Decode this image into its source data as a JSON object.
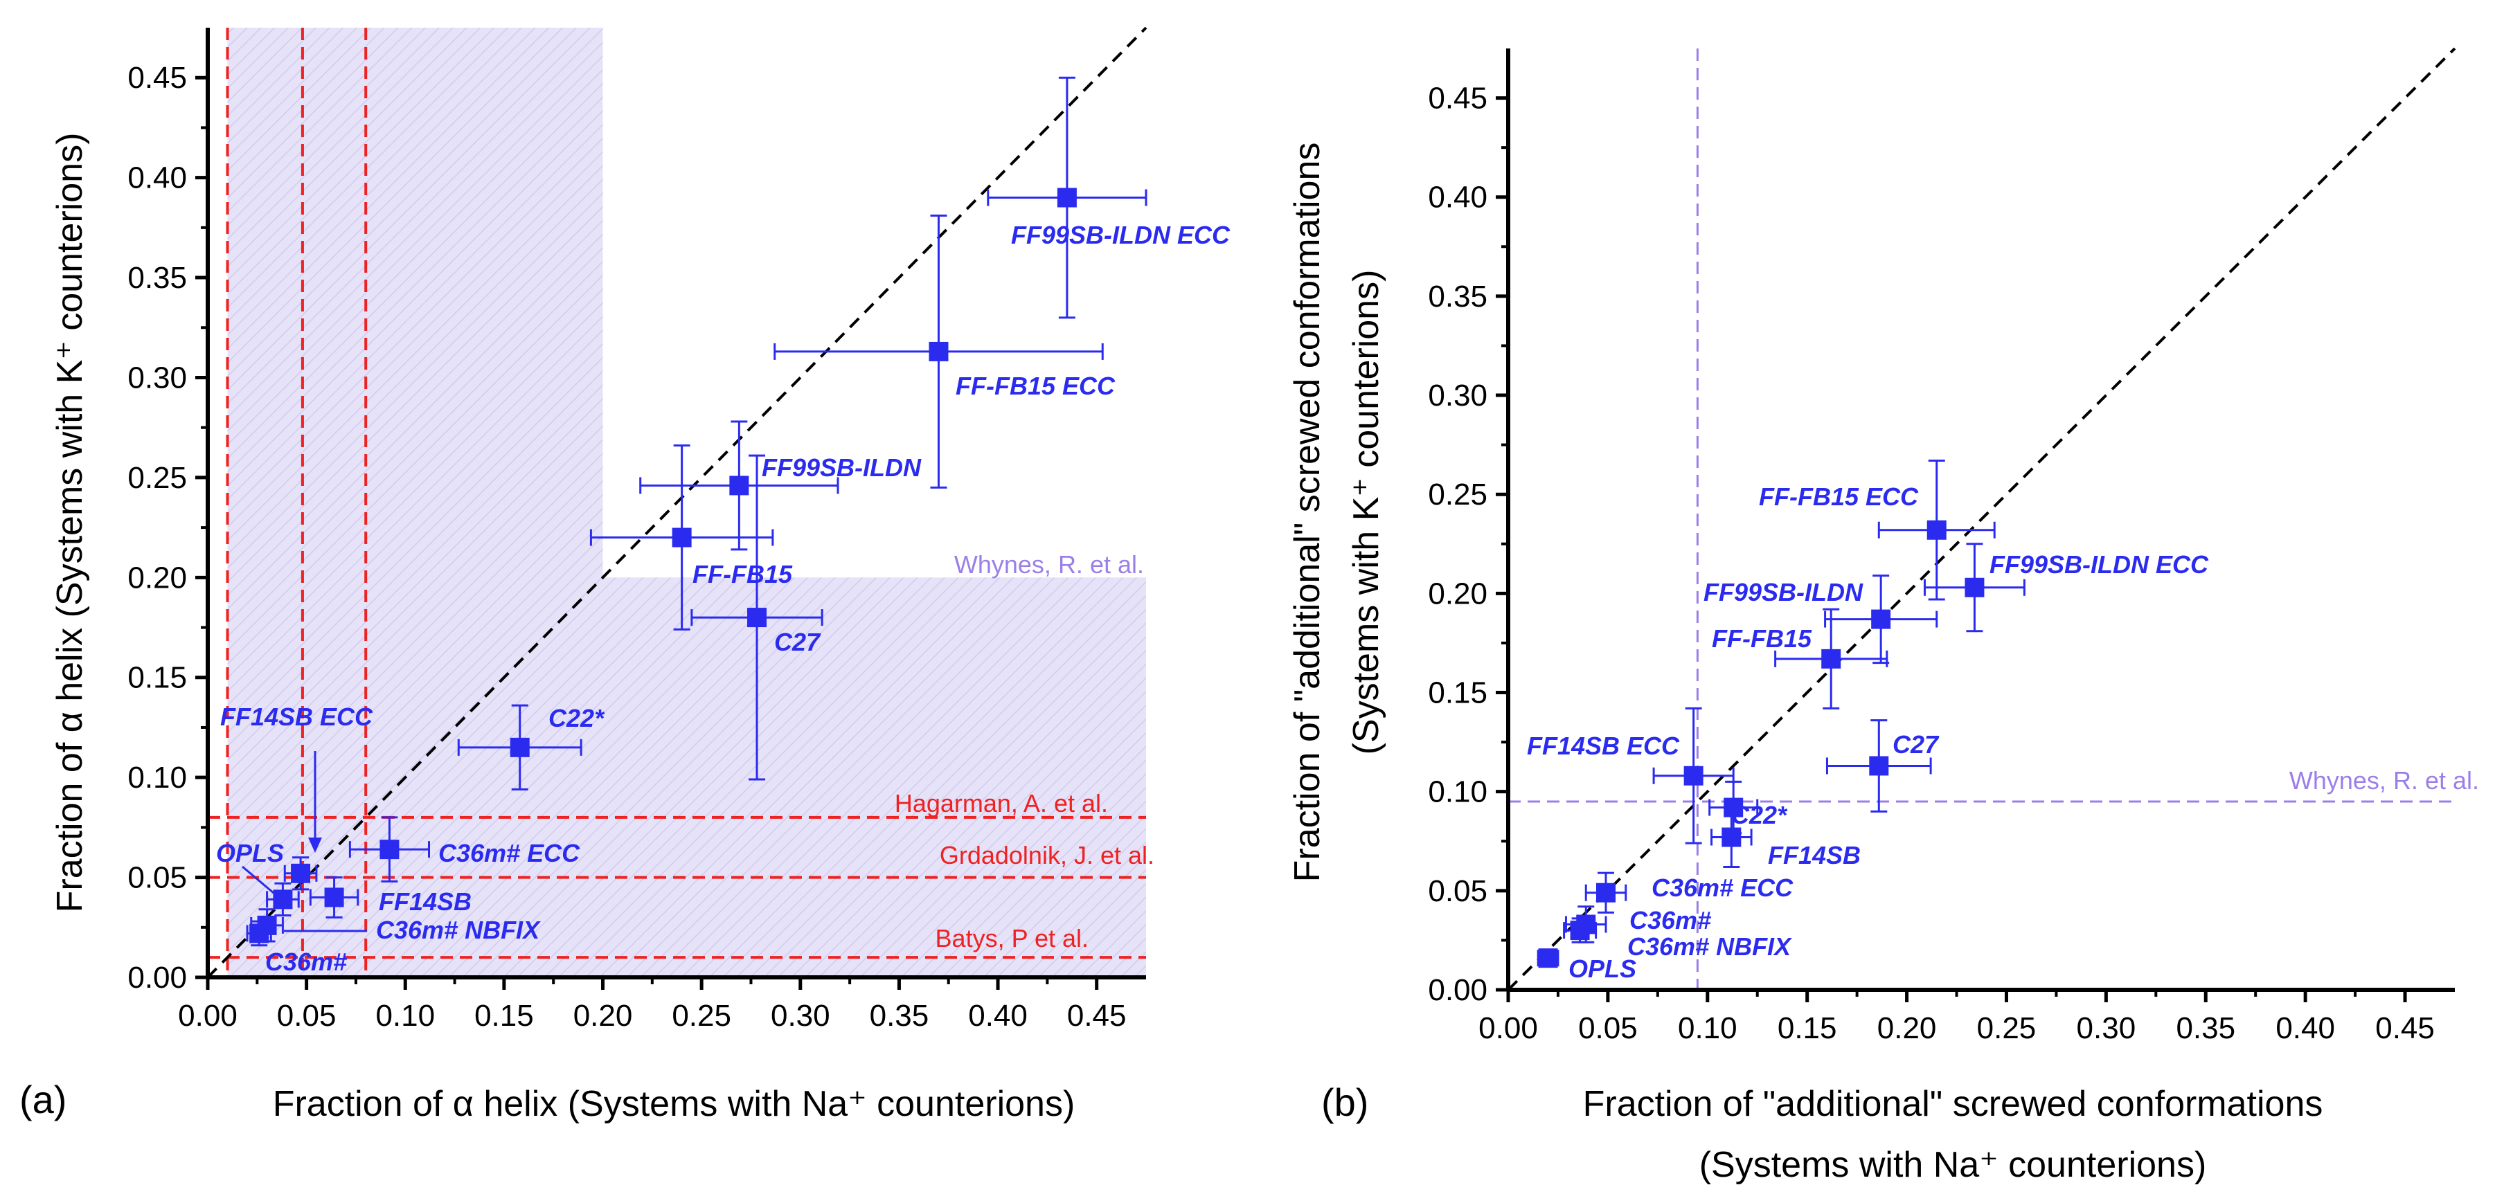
{
  "colors": {
    "series": "#2b2bf0",
    "exp_red": "#ee2222",
    "exp_purple": "#9b7fe8",
    "region_fill": "#e6e2f7",
    "axis": "#000000"
  },
  "chart_data": [
    {
      "type": "scatter",
      "panel_label": "(a)",
      "xlabel": "Fraction of α helix (Systems with Na⁺ counterions)",
      "ylabel": "Fraction of α helix (Systems with K⁺ counterions)",
      "xlim": [
        0,
        0.475
      ],
      "ylim": [
        0,
        0.475
      ],
      "ticks": [
        "0.00",
        "0.05",
        "0.10",
        "0.15",
        "0.20",
        "0.25",
        "0.30",
        "0.35",
        "0.40",
        "0.45"
      ],
      "diagonal": true,
      "shaded_regions": [
        {
          "x": [
            0.01,
            0.2
          ],
          "y": [
            0,
            0.475
          ]
        },
        {
          "x": [
            0.2,
            0.475
          ],
          "y": [
            0,
            0.2
          ]
        }
      ],
      "ref_lines": [
        {
          "label": "Hagarman, A. et al.",
          "axis": "y",
          "value": 0.08,
          "color": "red"
        },
        {
          "label": "Grdadolnik, J. et al.",
          "axis": "y",
          "value": 0.05,
          "color": "red"
        },
        {
          "label": "Batys, P et al.",
          "axis": "y",
          "value": 0.01,
          "color": "red"
        },
        {
          "label": "",
          "axis": "x",
          "value": 0.01,
          "color": "red"
        },
        {
          "label": "",
          "axis": "x",
          "value": 0.048,
          "color": "red"
        },
        {
          "label": "",
          "axis": "x",
          "value": 0.08,
          "color": "red"
        }
      ],
      "region_label": "Whynes, R. et al.",
      "points": [
        {
          "label": "FF99SB-ILDN ECC",
          "x": 0.435,
          "y": 0.39,
          "xerr": 0.04,
          "yerr": 0.06
        },
        {
          "label": "FF-FB15 ECC",
          "x": 0.37,
          "y": 0.313,
          "xerr": 0.083,
          "yerr": 0.068
        },
        {
          "label": "FF99SB-ILDN",
          "x": 0.269,
          "y": 0.246,
          "xerr": 0.05,
          "yerr": 0.032
        },
        {
          "label": "FF-FB15",
          "x": 0.24,
          "y": 0.22,
          "xerr": 0.046,
          "yerr": 0.046
        },
        {
          "label": "C27",
          "x": 0.278,
          "y": 0.18,
          "xerr": 0.033,
          "yerr": 0.081
        },
        {
          "label": "C22*",
          "x": 0.158,
          "y": 0.115,
          "xerr": 0.031,
          "yerr": 0.021
        },
        {
          "label": "C36m# ECC",
          "x": 0.092,
          "y": 0.064,
          "xerr": 0.02,
          "yerr": 0.016
        },
        {
          "label": "FF14SB ECC",
          "x": 0.047,
          "y": 0.052,
          "xerr": 0.008,
          "yerr": 0.008
        },
        {
          "label": "FF14SB",
          "x": 0.064,
          "y": 0.04,
          "xerr": 0.012,
          "yerr": 0.01
        },
        {
          "label": "OPLS",
          "x": 0.038,
          "y": 0.039,
          "xerr": 0.008,
          "yerr": 0.008
        },
        {
          "label": "C36m# NBFIX",
          "x": 0.03,
          "y": 0.026,
          "xerr": 0.008,
          "yerr": 0.008
        },
        {
          "label": "C36m#",
          "x": 0.026,
          "y": 0.022,
          "xerr": 0.006,
          "yerr": 0.006
        }
      ]
    },
    {
      "type": "scatter",
      "panel_label": "(b)",
      "xlabel_line1": "Fraction of \"additional\" screwed conformations",
      "xlabel_line2": "(Systems with Na⁺ counterions)",
      "ylabel_line1": "Fraction of \"additional\" screwed conformations",
      "ylabel_line2": "(Systems with K⁺ counterions)",
      "xlim": [
        0,
        0.475
      ],
      "ylim": [
        0,
        0.475
      ],
      "ticks": [
        "0.00",
        "0.05",
        "0.10",
        "0.15",
        "0.20",
        "0.25",
        "0.30",
        "0.35",
        "0.40",
        "0.45"
      ],
      "diagonal": true,
      "ref_lines": [
        {
          "label": "Whynes, R. et al.",
          "axis": "y",
          "value": 0.095,
          "color": "purple"
        },
        {
          "label": "",
          "axis": "x",
          "value": 0.095,
          "color": "purple"
        }
      ],
      "points": [
        {
          "label": "FF-FB15 ECC",
          "x": 0.215,
          "y": 0.232,
          "xerr": 0.029,
          "yerr": 0.035
        },
        {
          "label": "FF99SB-ILDN ECC",
          "x": 0.234,
          "y": 0.203,
          "xerr": 0.025,
          "yerr": 0.022
        },
        {
          "label": "FF99SB-ILDN",
          "x": 0.187,
          "y": 0.187,
          "xerr": 0.028,
          "yerr": 0.022
        },
        {
          "label": "FF-FB15",
          "x": 0.162,
          "y": 0.167,
          "xerr": 0.028,
          "yerr": 0.025
        },
        {
          "label": "C27",
          "x": 0.186,
          "y": 0.113,
          "xerr": 0.026,
          "yerr": 0.023
        },
        {
          "label": "FF14SB ECC",
          "x": 0.093,
          "y": 0.108,
          "xerr": 0.02,
          "yerr": 0.034
        },
        {
          "label": "C22*",
          "x": 0.113,
          "y": 0.092,
          "xerr": 0.012,
          "yerr": 0.013
        },
        {
          "label": "FF14SB",
          "x": 0.112,
          "y": 0.077,
          "xerr": 0.01,
          "yerr": 0.015
        },
        {
          "label": "C36m# ECC",
          "x": 0.049,
          "y": 0.049,
          "xerr": 0.01,
          "yerr": 0.01
        },
        {
          "label": "C36m#",
          "x": 0.039,
          "y": 0.033,
          "xerr": 0.01,
          "yerr": 0.009
        },
        {
          "label": "C36m# NBFIX",
          "x": 0.036,
          "y": 0.03,
          "xerr": 0.008,
          "yerr": 0.006
        },
        {
          "label": "OPLS",
          "x": 0.02,
          "y": 0.016,
          "xerr": 0.005,
          "yerr": 0.004
        }
      ]
    }
  ]
}
